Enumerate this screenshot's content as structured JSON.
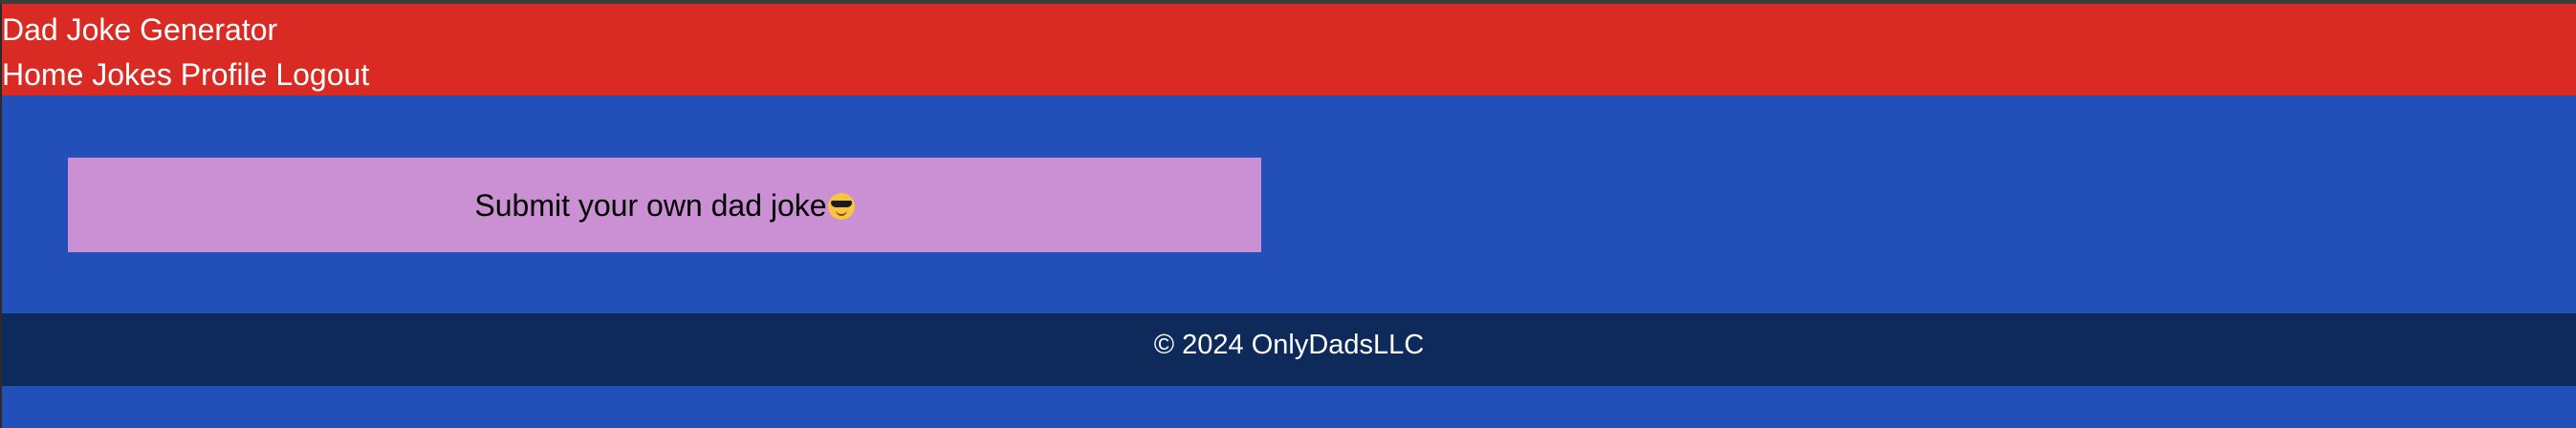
{
  "header": {
    "title": "Dad Joke Generator",
    "nav": [
      {
        "label": "Home"
      },
      {
        "label": "Jokes"
      },
      {
        "label": "Profile"
      },
      {
        "label": "Logout"
      }
    ]
  },
  "main": {
    "submit_label": "Submit your own dad joke",
    "submit_emoji": "smiling-face-with-sunglasses-icon"
  },
  "footer": {
    "copyright": "© 2024 OnlyDadsLLC"
  },
  "colors": {
    "header_bg": "#d92b23",
    "main_bg": "#2250b8",
    "card_bg": "#cb8fd3",
    "footer_bg": "#0e2a5a",
    "text_light": "#ffffff",
    "text_dark": "#000000"
  }
}
